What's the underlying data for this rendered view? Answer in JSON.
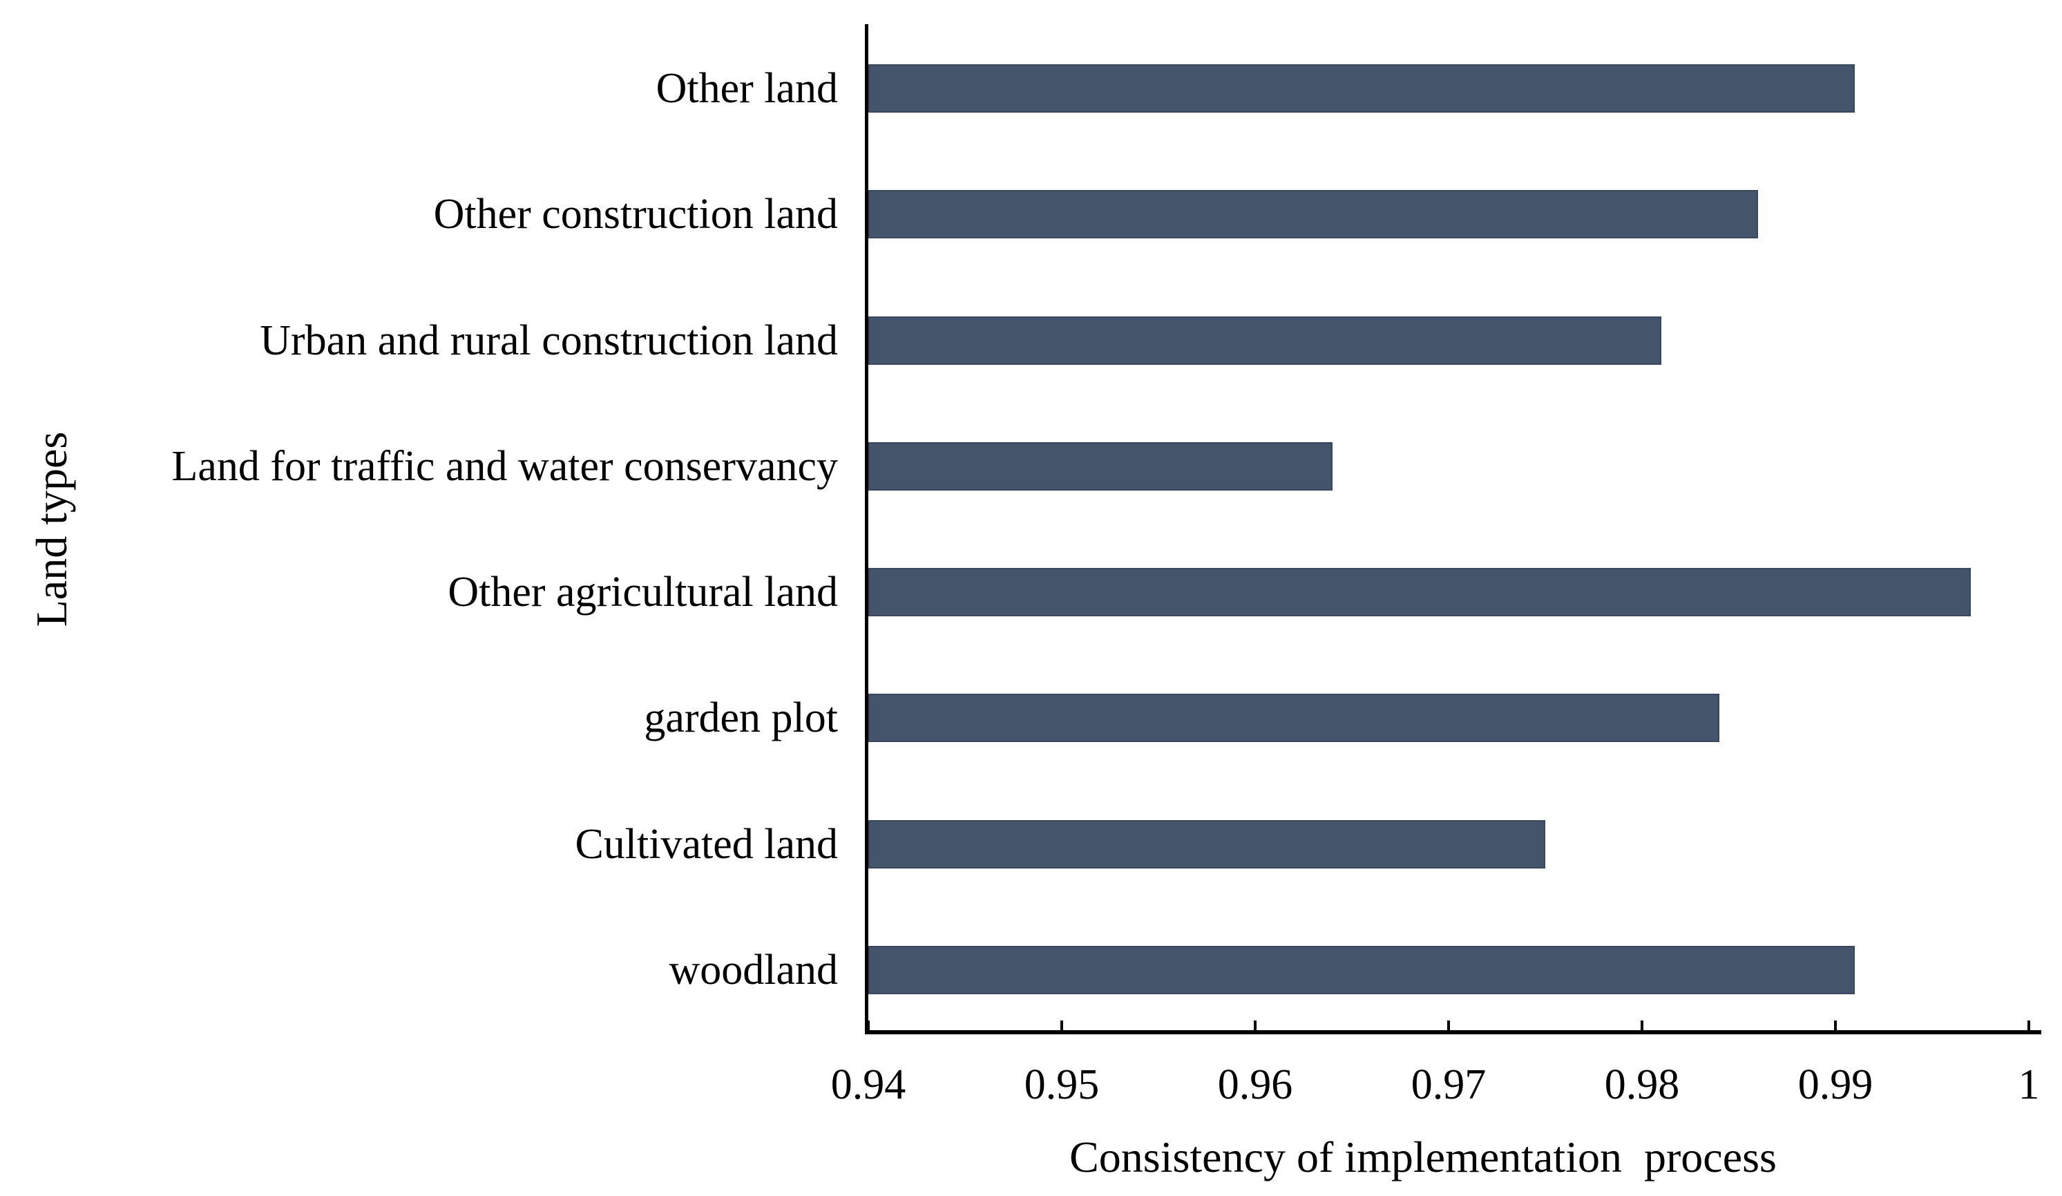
{
  "figure": {
    "background": "#ffffff"
  },
  "chart_data": {
    "type": "bar",
    "orientation": "horizontal",
    "title": "",
    "xlabel": "Consistency of implementation  process",
    "ylabel": "Land types",
    "categories_top_to_bottom": [
      "Other land",
      "Other construction land",
      "Urban and rural construction land",
      "Land for traffic and water conservancy",
      "Other agricultural land",
      "garden plot",
      "Cultivated land",
      "woodland"
    ],
    "values": [
      0.991,
      0.986,
      0.981,
      0.964,
      0.997,
      0.984,
      0.975,
      0.991
    ],
    "xlim": [
      0.94,
      1
    ],
    "xtick_values": [
      0.94,
      0.95,
      0.96,
      0.97,
      0.98,
      0.99,
      1
    ],
    "xtick_labels": [
      "0.94",
      "0.95",
      "0.96",
      "0.97",
      "0.98",
      "0.99",
      "1"
    ],
    "grid": false,
    "legend": false,
    "bar_color": "#44546A",
    "bar_border_color": "#39465C",
    "axis_color": "#000000",
    "text_color": "#000000"
  }
}
